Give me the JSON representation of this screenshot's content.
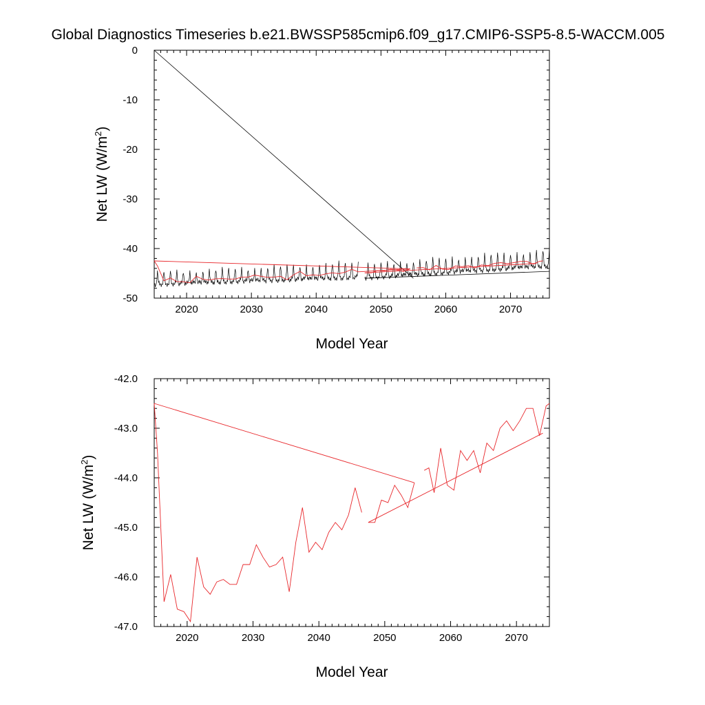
{
  "title": "Global Diagnostics Timeseries b.e21.BWSSP585cmip6.f09_g17.CMIP6-SSP5-8.5-WACCM.005",
  "chart_data": [
    {
      "type": "line",
      "xlabel": "Model Year",
      "ylabel": "Net LW (W/m",
      "ylabel_sup": "2",
      "ylabel_tail": ")",
      "xlim": [
        2015,
        2076
      ],
      "ylim": [
        -50,
        0
      ],
      "xticks": [
        2020,
        2030,
        2040,
        2050,
        2060,
        2070
      ],
      "yticks": [
        0,
        -10,
        -20,
        -30,
        -40,
        -50
      ],
      "ytick_labels": [
        "0",
        "-10",
        "-20",
        "-30",
        "-40",
        "-50"
      ],
      "series": [
        {
          "color": "#000000",
          "style": "monthly",
          "segments": [
            {
              "x_start": 2015.0,
              "x_end": 2046.5,
              "base_start": -47.2,
              "base_end": -45.8,
              "amp_start": 2.3,
              "amp_end": 3.0
            },
            {
              "x_start": 2047.5,
              "x_end": 2076.0,
              "base_start": -45.9,
              "base_end": -43.5,
              "amp_start": 2.6,
              "amp_end": 3.2
            }
          ],
          "extra_lines": [
            {
              "x": [
                2015.0,
                2055.0
              ],
              "y": [
                0.0,
                -46.0
              ]
            },
            {
              "x": [
                2047.5,
                2076.0
              ],
              "y": [
                -46.0,
                -44.6
              ]
            }
          ]
        },
        {
          "color": "#e8262a",
          "style": "annual",
          "x": [
            2015.0,
            2015.5,
            2016.5,
            2017.5,
            2018.5,
            2019.5,
            2020.5,
            2021.5,
            2022.5,
            2023.5,
            2024.5,
            2025.5,
            2026.5,
            2027.5,
            2028.5,
            2029.5,
            2030.5,
            2031.5,
            2032.5,
            2033.5,
            2034.5,
            2035.5,
            2036.5,
            2037.5,
            2038.5,
            2039.5,
            2040.5,
            2041.5,
            2042.5,
            2043.5,
            2044.5,
            2045.5,
            2046.5,
            2054.5,
            null,
            2047.5,
            2048.5,
            2049.5,
            2050.5,
            2051.5,
            2052.5,
            2053.5,
            2054.5,
            null,
            2055.5,
            2056.5,
            2057.5,
            2058.5,
            2059.5,
            2060.5,
            2061.5,
            2062.5,
            2063.5,
            2064.5,
            2065.5,
            2066.5,
            2067.5,
            2068.5,
            2069.5,
            2070.5,
            2071.5,
            2072.5,
            2073.5,
            2074.5,
            2075.0,
            null,
            2047.5,
            2074.0
          ],
          "y": [
            -42.5,
            -43.5,
            -46.5,
            -45.95,
            -46.65,
            -46.7,
            -46.9,
            -45.6,
            -46.2,
            -46.35,
            -46.1,
            -46.05,
            -46.15,
            -46.15,
            -45.75,
            -45.75,
            -45.35,
            -45.6,
            -45.8,
            -45.75,
            -45.6,
            -46.3,
            -45.3,
            -44.6,
            -45.5,
            -45.3,
            -45.45,
            -45.1,
            -44.9,
            -45.05,
            -44.75,
            -44.2,
            -44.7,
            -44.1,
            null,
            -44.9,
            -44.9,
            -44.45,
            -44.5,
            -44.15,
            -44.35,
            -44.6,
            -44.1,
            null,
            -43.9,
            -43.85,
            -44.3,
            -43.4,
            -44.15,
            -44.25,
            -43.5,
            -43.65,
            -43.45,
            -43.9,
            -43.3,
            -43.45,
            -43.0,
            -42.85,
            -43.05,
            -42.85,
            -42.6,
            -42.6,
            -43.15,
            -42.55,
            -42.5,
            null,
            -44.9,
            -43.0
          ],
          "bridge": {
            "x": [
              2015.0,
              2054.5
            ],
            "y": [
              -42.5,
              -44.1
            ]
          }
        }
      ]
    },
    {
      "type": "line",
      "xlabel": "Model Year",
      "ylabel": "Net LW (W/m",
      "ylabel_sup": "2",
      "ylabel_tail": ")",
      "xlim": [
        2015,
        2075
      ],
      "ylim": [
        -47.0,
        -42.0
      ],
      "xticks": [
        2020,
        2030,
        2040,
        2050,
        2060,
        2070
      ],
      "yticks": [
        -42.0,
        -43.0,
        -44.0,
        -45.0,
        -46.0,
        -47.0
      ],
      "ytick_labels": [
        "-42.0",
        "-43.0",
        "-44.0",
        "-45.0",
        "-46.0",
        "-47.0"
      ],
      "series": [
        {
          "color": "#e8262a",
          "style": "annual",
          "x": [
            2015.0,
            2015.5,
            2016.5,
            2017.5,
            2018.5,
            2019.5,
            2020.5,
            2021.5,
            2022.5,
            2023.5,
            2024.5,
            2025.5,
            2026.5,
            2027.5,
            2028.5,
            2029.5,
            2030.5,
            2031.5,
            2032.5,
            2033.5,
            2034.5,
            2035.5,
            2036.5,
            2037.5,
            2038.5,
            2039.5,
            2040.5,
            2041.5,
            2042.5,
            2043.5,
            2044.5,
            2045.5,
            2046.5,
            null,
            2047.5,
            2048.5,
            2049.5,
            2050.5,
            2051.5,
            2052.5,
            2053.5,
            2054.5,
            null,
            2056.0,
            2056.7,
            2057.5,
            2058.5,
            2059.5,
            2060.5,
            2061.5,
            2062.5,
            2063.5,
            2064.5,
            2065.5,
            2066.5,
            2067.5,
            2068.5,
            2069.5,
            2070.5,
            2071.5,
            2072.5,
            2073.5,
            2074.5,
            2075.0,
            null,
            2047.5,
            2074.0
          ],
          "y": [
            -42.5,
            -43.5,
            -46.5,
            -45.95,
            -46.65,
            -46.7,
            -46.9,
            -45.6,
            -46.2,
            -46.35,
            -46.1,
            -46.05,
            -46.15,
            -46.15,
            -45.75,
            -45.75,
            -45.35,
            -45.6,
            -45.8,
            -45.75,
            -45.6,
            -46.3,
            -45.3,
            -44.6,
            -45.5,
            -45.3,
            -45.45,
            -45.1,
            -44.9,
            -45.05,
            -44.75,
            -44.2,
            -44.7,
            null,
            -44.9,
            -44.9,
            -44.45,
            -44.5,
            -44.15,
            -44.35,
            -44.6,
            -44.1,
            null,
            -43.85,
            -43.8,
            -44.3,
            -43.4,
            -44.15,
            -44.25,
            -43.45,
            -43.65,
            -43.45,
            -43.9,
            -43.3,
            -43.45,
            -43.0,
            -42.85,
            -43.05,
            -42.85,
            -42.6,
            -42.6,
            -43.15,
            -42.55,
            -42.5,
            null,
            -44.9,
            -43.1
          ],
          "bridge": {
            "x": [
              2015.0,
              2054.5
            ],
            "y": [
              -42.5,
              -44.1
            ]
          }
        }
      ]
    }
  ]
}
